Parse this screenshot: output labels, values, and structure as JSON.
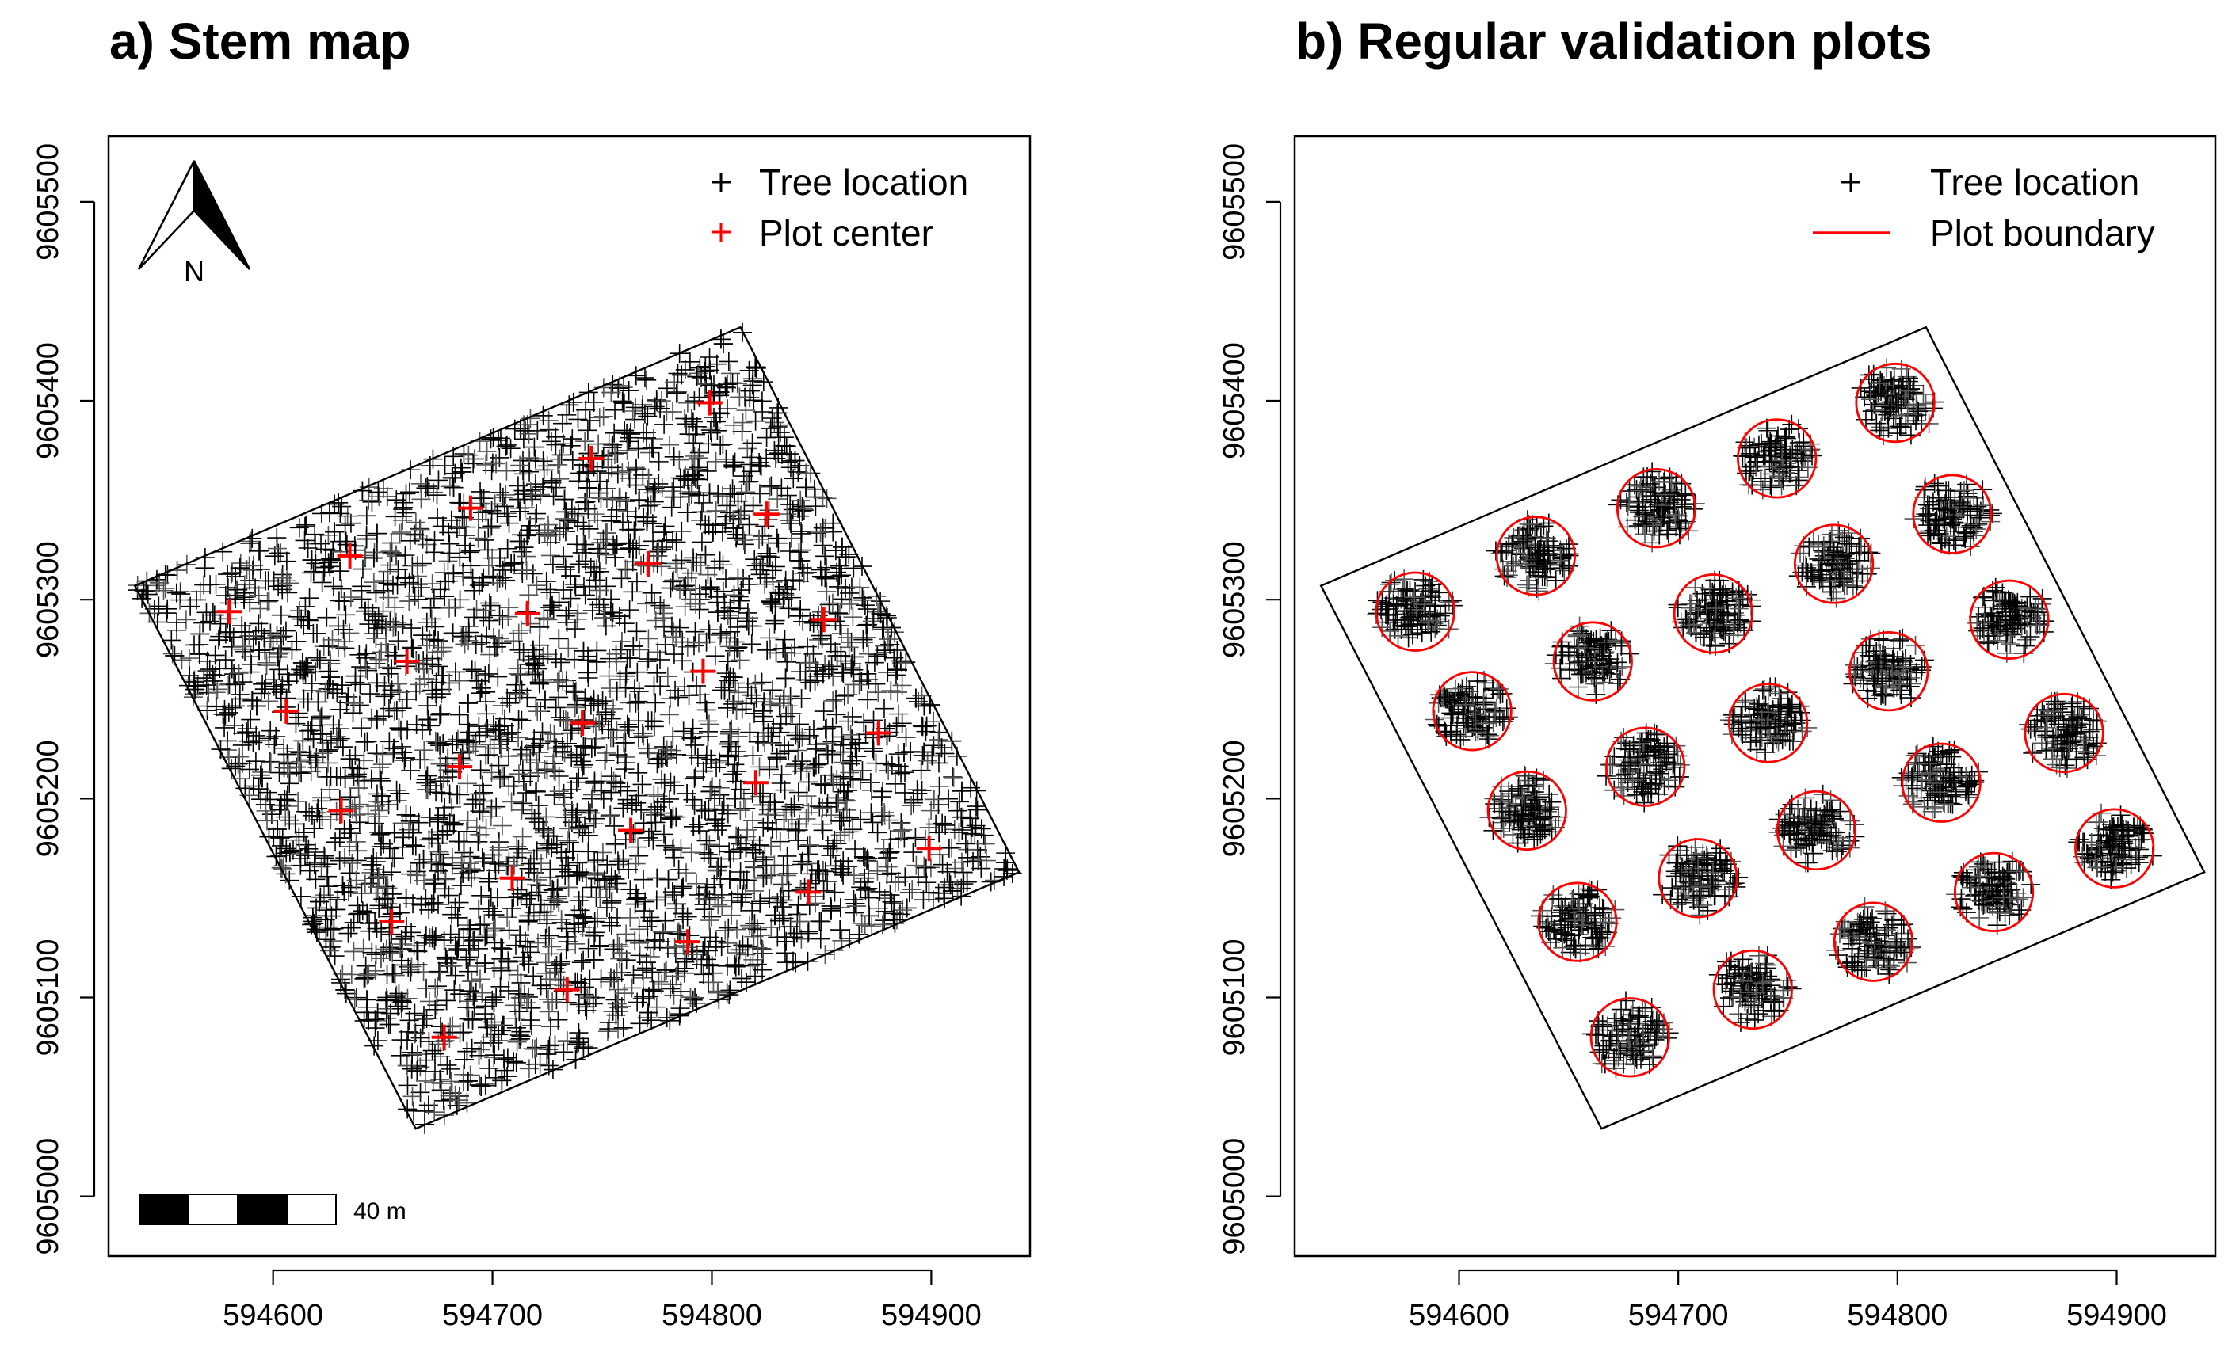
{
  "chart_data": [
    {
      "type": "scatter",
      "panel": "a",
      "title": "a) Stem map",
      "xlabel": "",
      "ylabel": "",
      "xlim": [
        594525,
        594945
      ],
      "ylim": [
        9604970,
        9605533
      ],
      "x_ticks": [
        594600,
        594700,
        594800,
        594900
      ],
      "x_tick_labels": [
        "594600",
        "594700",
        "594800",
        "594900"
      ],
      "y_ticks": [
        9605000,
        9605100,
        9605200,
        9605300,
        9605400,
        9605500
      ],
      "y_tick_labels": [
        "9605000",
        "9605100",
        "9605200",
        "9605300",
        "9605400",
        "9605500"
      ],
      "grid": false,
      "legend_position": "top-right",
      "legend": [
        {
          "label": "Tree location",
          "symbol": "+",
          "color": "#000000"
        },
        {
          "label": "Plot center",
          "symbol": "+",
          "color": "#ff0000"
        }
      ],
      "north_arrow_label": "N",
      "scale_bar_label": "40 m",
      "boundary_corners": [
        [
          594537,
          9605307
        ],
        [
          594813,
          9605437
        ],
        [
          594940,
          9605163
        ],
        [
          594665,
          9605034
        ]
      ],
      "tree_location_distribution": "dense, covering the whole boundary area (several thousand stems)",
      "series": [
        {
          "name": "Plot center",
          "color": "#ff0000",
          "points": [
            [
              594580,
              9605294
            ],
            [
              594635,
              9605322
            ],
            [
              594690,
              9605346
            ],
            [
              594745,
              9605371
            ],
            [
              594799,
              9605399
            ],
            [
              594606,
              9605244
            ],
            [
              594661,
              9605269
            ],
            [
              594716,
              9605293
            ],
            [
              594771,
              9605318
            ],
            [
              594825,
              9605343
            ],
            [
              594631,
              9605194
            ],
            [
              594685,
              9605216
            ],
            [
              594741,
              9605238
            ],
            [
              594796,
              9605264
            ],
            [
              594851,
              9605290
            ],
            [
              594654,
              9605138
            ],
            [
              594709,
              9605160
            ],
            [
              594763,
              9605184
            ],
            [
              594820,
              9605208
            ],
            [
              594876,
              9605233
            ],
            [
              594678,
              9605080
            ],
            [
              594734,
              9605104
            ],
            [
              594789,
              9605128
            ],
            [
              594844,
              9605153
            ],
            [
              594899,
              9605175
            ]
          ]
        }
      ]
    },
    {
      "type": "scatter",
      "panel": "b",
      "title": "b) Regular validation plots",
      "xlabel": "",
      "ylabel": "",
      "xlim": [
        594525,
        594945
      ],
      "ylim": [
        9604970,
        9605533
      ],
      "x_ticks": [
        594600,
        594700,
        594800,
        594900
      ],
      "x_tick_labels": [
        "594600",
        "594700",
        "594800",
        "594900"
      ],
      "y_ticks": [
        9605000,
        9605100,
        9605200,
        9605300,
        9605400,
        9605500
      ],
      "y_tick_labels": [
        "9605000",
        "9605100",
        "9605200",
        "9605300",
        "9605400",
        "9605500"
      ],
      "grid": false,
      "legend_position": "top-right",
      "legend": [
        {
          "label": "Tree location",
          "symbol": "+",
          "color": "#000000"
        },
        {
          "label": "Plot boundary",
          "symbol": "line",
          "color": "#ff0000"
        }
      ],
      "boundary_corners": [
        [
          594537,
          9605307
        ],
        [
          594813,
          9605437
        ],
        [
          594940,
          9605163
        ],
        [
          594665,
          9605034
        ]
      ],
      "plot_radius_m": 17.8,
      "series": [
        {
          "name": "Plot boundary",
          "color": "#ff0000",
          "circle_centers": [
            [
              594580,
              9605294
            ],
            [
              594635,
              9605322
            ],
            [
              594690,
              9605346
            ],
            [
              594745,
              9605371
            ],
            [
              594799,
              9605399
            ],
            [
              594606,
              9605244
            ],
            [
              594661,
              9605269
            ],
            [
              594716,
              9605293
            ],
            [
              594771,
              9605318
            ],
            [
              594825,
              9605343
            ],
            [
              594631,
              9605194
            ],
            [
              594685,
              9605216
            ],
            [
              594741,
              9605238
            ],
            [
              594796,
              9605264
            ],
            [
              594851,
              9605290
            ],
            [
              594654,
              9605138
            ],
            [
              594709,
              9605160
            ],
            [
              594763,
              9605184
            ],
            [
              594820,
              9605208
            ],
            [
              594876,
              9605233
            ],
            [
              594678,
              9605080
            ],
            [
              594734,
              9605104
            ],
            [
              594789,
              9605128
            ],
            [
              594844,
              9605153
            ],
            [
              594899,
              9605175
            ]
          ]
        }
      ]
    }
  ]
}
